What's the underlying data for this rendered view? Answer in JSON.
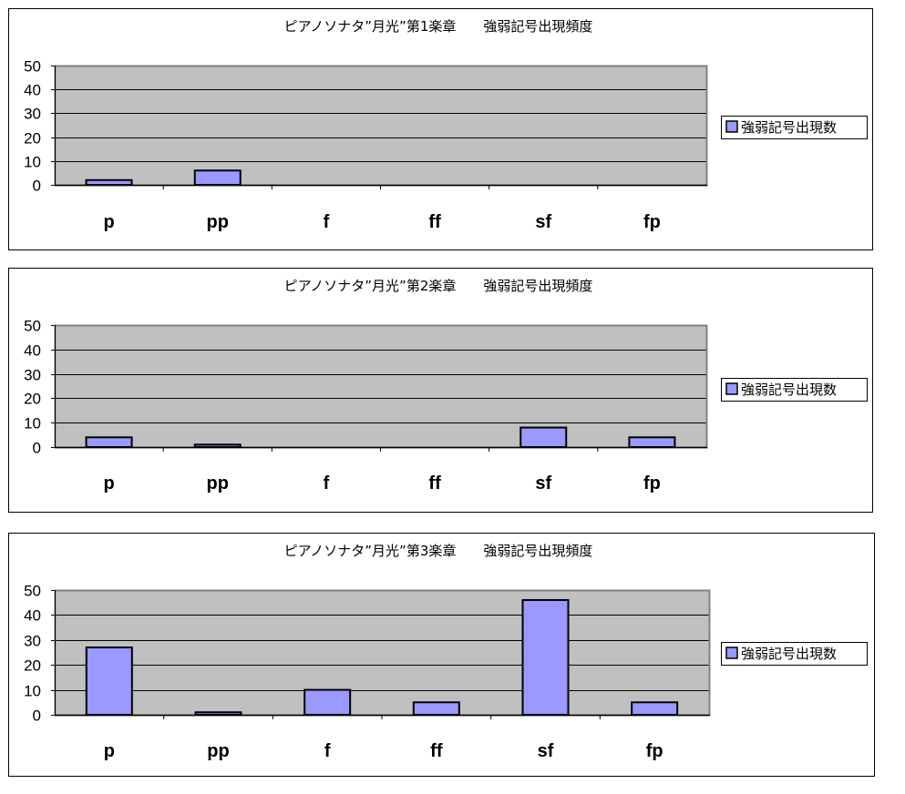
{
  "chart_data": [
    {
      "type": "bar",
      "title": "ピアノソナタ”月光”第1楽章　　強弱記号出現頻度",
      "categories": [
        "p",
        "pp",
        "f",
        "ff",
        "sf",
        "fp"
      ],
      "series": [
        {
          "name": "強弱記号出現数",
          "values": [
            2,
            6,
            0,
            0,
            0,
            0
          ]
        }
      ],
      "ylim": [
        0,
        50
      ],
      "yticks": [
        "0",
        "10",
        "20",
        "30",
        "40",
        "50"
      ],
      "grid": true,
      "legend": "right",
      "colors": {
        "bar": "#9999ff",
        "plot_bg": "#c0c0c0"
      }
    },
    {
      "type": "bar",
      "title": "ピアノソナタ”月光”第2楽章　　強弱記号出現頻度",
      "categories": [
        "p",
        "pp",
        "f",
        "ff",
        "sf",
        "fp"
      ],
      "series": [
        {
          "name": "強弱記号出現数",
          "values": [
            4,
            1,
            0,
            0,
            8,
            4
          ]
        }
      ],
      "ylim": [
        0,
        50
      ],
      "yticks": [
        "0",
        "10",
        "20",
        "30",
        "40",
        "50"
      ],
      "grid": true,
      "legend": "right",
      "colors": {
        "bar": "#9999ff",
        "plot_bg": "#c0c0c0"
      }
    },
    {
      "type": "bar",
      "title": "ピアノソナタ”月光”第3楽章　　強弱記号出現頻度",
      "categories": [
        "p",
        "pp",
        "f",
        "ff",
        "sf",
        "fp"
      ],
      "series": [
        {
          "name": "強弱記号出現数",
          "values": [
            27,
            1,
            10,
            5,
            46,
            5
          ]
        }
      ],
      "ylim": [
        0,
        50
      ],
      "yticks": [
        "0",
        "10",
        "20",
        "30",
        "40",
        "50"
      ],
      "grid": true,
      "legend": "right",
      "colors": {
        "bar": "#9999ff",
        "plot_bg": "#c0c0c0"
      }
    }
  ]
}
